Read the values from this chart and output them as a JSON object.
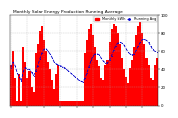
{
  "title": "Monthly Solar Energy Production Running Average",
  "bar_color": "#ff0000",
  "avg_color": "#0000cc",
  "background_color": "#ffffff",
  "grid_color": "#aaaaaa",
  "bar_values": [
    45,
    60,
    30,
    5,
    35,
    5,
    65,
    48,
    30,
    38,
    20,
    15,
    58,
    68,
    82,
    88,
    72,
    60,
    48,
    40,
    28,
    18,
    35,
    45,
    5,
    5,
    5,
    5,
    5,
    5,
    5,
    5,
    5,
    5,
    5,
    5,
    58,
    72,
    85,
    90,
    78,
    65,
    50,
    44,
    30,
    28,
    45,
    50,
    70,
    85,
    90,
    88,
    80,
    68,
    52,
    40,
    32,
    25,
    42,
    50,
    65,
    78,
    88,
    92,
    80,
    68,
    52,
    45,
    30,
    28,
    45,
    52
  ],
  "avg_values": [
    42,
    48,
    44,
    36,
    32,
    27,
    38,
    42,
    40,
    40,
    37,
    33,
    38,
    44,
    51,
    58,
    62,
    63,
    60,
    57,
    53,
    48,
    46,
    45,
    44,
    43,
    42,
    40,
    38,
    36,
    34,
    32,
    30,
    28,
    27,
    26,
    30,
    36,
    43,
    50,
    55,
    57,
    57,
    56,
    52,
    49,
    47,
    47,
    50,
    55,
    61,
    66,
    69,
    70,
    69,
    67,
    63,
    59,
    57,
    56,
    57,
    61,
    66,
    70,
    73,
    73,
    72,
    70,
    66,
    62,
    60,
    59
  ],
  "ylim": [
    0,
    100
  ],
  "yticks": [
    0,
    20,
    40,
    60,
    80,
    100
  ],
  "legend_labels": [
    "Monthly kWh",
    "Running Avg"
  ],
  "legend_colors": [
    "#ff0000",
    "#0000cc"
  ]
}
